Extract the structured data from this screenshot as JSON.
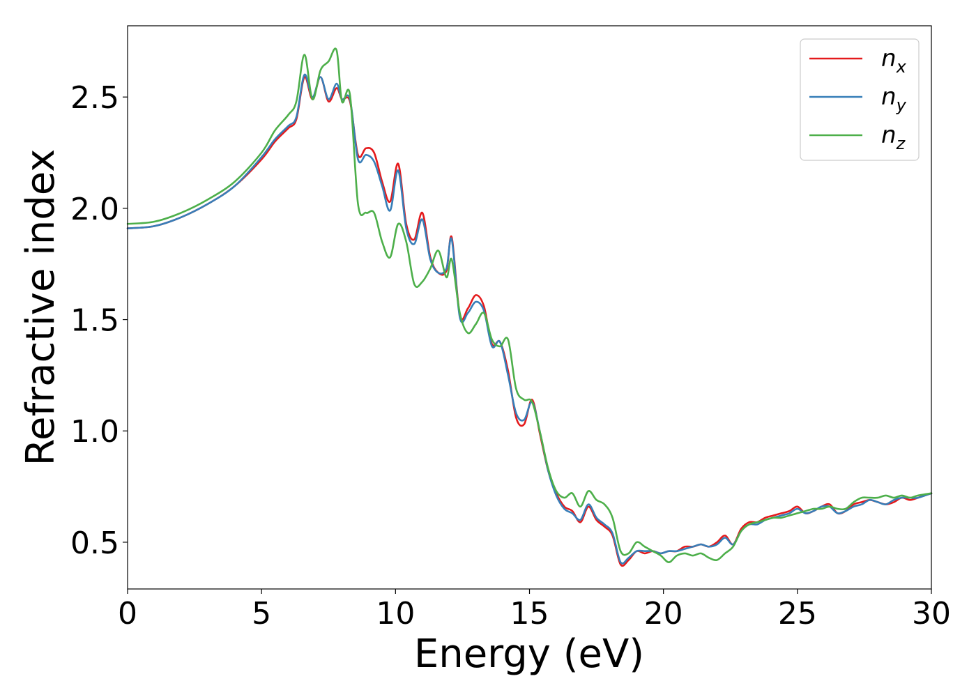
{
  "chart_data": {
    "type": "line",
    "title": "",
    "xlabel": "Energy (eV)",
    "ylabel": "Refractive index",
    "xlim": [
      0,
      30
    ],
    "ylim": [
      0.29,
      2.82
    ],
    "xticks": [
      0,
      5,
      10,
      15,
      20,
      25,
      30
    ],
    "xtick_labels": [
      "0",
      "5",
      "10",
      "15",
      "20",
      "25",
      "30"
    ],
    "yticks": [
      0.5,
      1.0,
      1.5,
      2.0,
      2.5
    ],
    "ytick_labels": [
      "0.5",
      "1.0",
      "1.5",
      "2.0",
      "2.5"
    ],
    "grid": false,
    "legend_position": "top-right",
    "x": [
      0,
      1,
      2,
      3,
      4,
      5,
      5.5,
      6,
      6.3,
      6.6,
      6.9,
      7.2,
      7.5,
      7.8,
      8.0,
      8.3,
      8.6,
      8.9,
      9.2,
      9.5,
      9.8,
      10.1,
      10.4,
      10.7,
      11.0,
      11.3,
      11.6,
      11.9,
      12.1,
      12.4,
      12.7,
      13.0,
      13.3,
      13.6,
      13.9,
      14.2,
      14.5,
      14.8,
      15.1,
      15.4,
      15.7,
      16.0,
      16.3,
      16.6,
      16.9,
      17.2,
      17.5,
      17.8,
      18.1,
      18.4,
      18.7,
      19.0,
      19.3,
      19.6,
      19.9,
      20.2,
      20.5,
      20.8,
      21.1,
      21.4,
      21.7,
      22.0,
      22.3,
      22.6,
      22.9,
      23.2,
      23.5,
      23.8,
      24.1,
      24.4,
      24.7,
      25.0,
      25.3,
      25.6,
      25.9,
      26.2,
      26.5,
      26.8,
      27.1,
      27.4,
      27.7,
      28.0,
      28.3,
      28.6,
      28.9,
      29.2,
      29.5,
      30.0
    ],
    "series": [
      {
        "name": "n",
        "subscript": "x",
        "color": "#e41a1c",
        "values": [
          1.91,
          1.92,
          1.96,
          2.02,
          2.1,
          2.22,
          2.3,
          2.36,
          2.4,
          2.59,
          2.49,
          2.59,
          2.48,
          2.54,
          2.49,
          2.48,
          2.24,
          2.27,
          2.25,
          2.12,
          2.03,
          2.2,
          1.93,
          1.86,
          1.98,
          1.78,
          1.71,
          1.72,
          1.87,
          1.52,
          1.55,
          1.61,
          1.56,
          1.39,
          1.4,
          1.27,
          1.06,
          1.03,
          1.14,
          0.98,
          0.82,
          0.72,
          0.66,
          0.64,
          0.59,
          0.66,
          0.6,
          0.57,
          0.53,
          0.4,
          0.42,
          0.46,
          0.45,
          0.46,
          0.45,
          0.46,
          0.46,
          0.48,
          0.48,
          0.49,
          0.48,
          0.5,
          0.53,
          0.49,
          0.56,
          0.59,
          0.59,
          0.61,
          0.62,
          0.63,
          0.64,
          0.66,
          0.63,
          0.64,
          0.66,
          0.67,
          0.63,
          0.64,
          0.67,
          0.68,
          0.69,
          0.68,
          0.67,
          0.68,
          0.7,
          0.69,
          0.7,
          0.72
        ]
      },
      {
        "name": "n",
        "subscript": "y",
        "color": "#377eb8",
        "values": [
          1.91,
          1.92,
          1.96,
          2.02,
          2.1,
          2.23,
          2.31,
          2.37,
          2.41,
          2.6,
          2.5,
          2.59,
          2.49,
          2.56,
          2.49,
          2.49,
          2.22,
          2.24,
          2.21,
          2.1,
          1.99,
          2.17,
          1.91,
          1.84,
          1.95,
          1.77,
          1.71,
          1.73,
          1.86,
          1.51,
          1.53,
          1.58,
          1.54,
          1.38,
          1.4,
          1.25,
          1.08,
          1.05,
          1.13,
          0.99,
          0.82,
          0.71,
          0.65,
          0.63,
          0.6,
          0.67,
          0.61,
          0.58,
          0.54,
          0.41,
          0.43,
          0.46,
          0.46,
          0.46,
          0.45,
          0.46,
          0.46,
          0.47,
          0.48,
          0.49,
          0.48,
          0.49,
          0.52,
          0.49,
          0.55,
          0.58,
          0.58,
          0.6,
          0.61,
          0.62,
          0.63,
          0.65,
          0.63,
          0.64,
          0.66,
          0.66,
          0.63,
          0.64,
          0.66,
          0.67,
          0.69,
          0.68,
          0.67,
          0.69,
          0.7,
          0.7,
          0.7,
          0.72
        ]
      },
      {
        "name": "n",
        "subscript": "z",
        "color": "#4daf4a",
        "values": [
          1.93,
          1.94,
          1.98,
          2.04,
          2.12,
          2.25,
          2.35,
          2.42,
          2.48,
          2.69,
          2.49,
          2.62,
          2.66,
          2.71,
          2.48,
          2.51,
          2.02,
          1.98,
          1.98,
          1.85,
          1.78,
          1.93,
          1.85,
          1.66,
          1.67,
          1.73,
          1.81,
          1.69,
          1.77,
          1.53,
          1.44,
          1.48,
          1.53,
          1.41,
          1.38,
          1.41,
          1.19,
          1.14,
          1.13,
          0.99,
          0.83,
          0.73,
          0.7,
          0.72,
          0.66,
          0.73,
          0.69,
          0.67,
          0.61,
          0.46,
          0.45,
          0.5,
          0.48,
          0.46,
          0.44,
          0.41,
          0.44,
          0.45,
          0.44,
          0.45,
          0.43,
          0.42,
          0.45,
          0.48,
          0.55,
          0.58,
          0.59,
          0.6,
          0.61,
          0.61,
          0.62,
          0.63,
          0.64,
          0.65,
          0.65,
          0.66,
          0.65,
          0.65,
          0.68,
          0.7,
          0.7,
          0.7,
          0.71,
          0.7,
          0.71,
          0.7,
          0.71,
          0.72
        ]
      }
    ]
  }
}
